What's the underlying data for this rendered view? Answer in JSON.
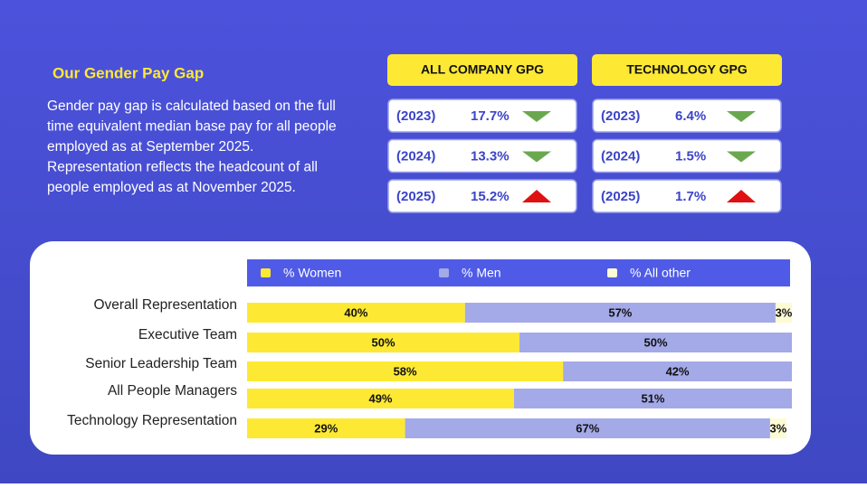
{
  "header": {
    "title": "Our Gender Pay Gap",
    "description": [
      "Gender pay gap is calculated based on the full",
      "time equivalent median base pay for all people",
      "employed as at September  2025.",
      "Representation reflects the headcount of all",
      "people employed as at November 2025."
    ]
  },
  "gpg_cards": [
    {
      "title": "ALL COMPANY GPG",
      "rows": [
        {
          "year": "(2023)",
          "value": "17.7%",
          "trend": "down"
        },
        {
          "year": "(2024)",
          "value": "13.3%",
          "trend": "down"
        },
        {
          "year": "(2025)",
          "value": "15.2%",
          "trend": "up"
        }
      ]
    },
    {
      "title": "TECHNOLOGY GPG",
      "rows": [
        {
          "year": "(2023)",
          "value": "6.4%",
          "trend": "down"
        },
        {
          "year": "(2024)",
          "value": "1.5%",
          "trend": "down"
        },
        {
          "year": "(2025)",
          "value": "1.7%",
          "trend": "up"
        }
      ]
    }
  ],
  "chart_data": {
    "type": "stacked-bar-horizontal",
    "categories": [
      "Overall Representation",
      "Executive Team",
      "Senior Leadership Team",
      "All People Managers",
      "Technology Representation"
    ],
    "xlim": [
      0,
      100
    ],
    "series": [
      {
        "name": "% Women",
        "color": "#fde934",
        "values": [
          40,
          50,
          58,
          49,
          29
        ],
        "value_labels": [
          "40%",
          "50%",
          "58%",
          "49%",
          "29%"
        ]
      },
      {
        "name": "% Men",
        "color": "#a4a9e8",
        "values": [
          57,
          50,
          42,
          51,
          67
        ],
        "value_labels": [
          "57%",
          "50%",
          "42%",
          "51%",
          "67%"
        ]
      },
      {
        "name": "% All other",
        "color": "#fdfbd3",
        "values": [
          3,
          0,
          0,
          0,
          3
        ],
        "value_labels": [
          "3%",
          null,
          null,
          null,
          "3%"
        ]
      }
    ]
  }
}
